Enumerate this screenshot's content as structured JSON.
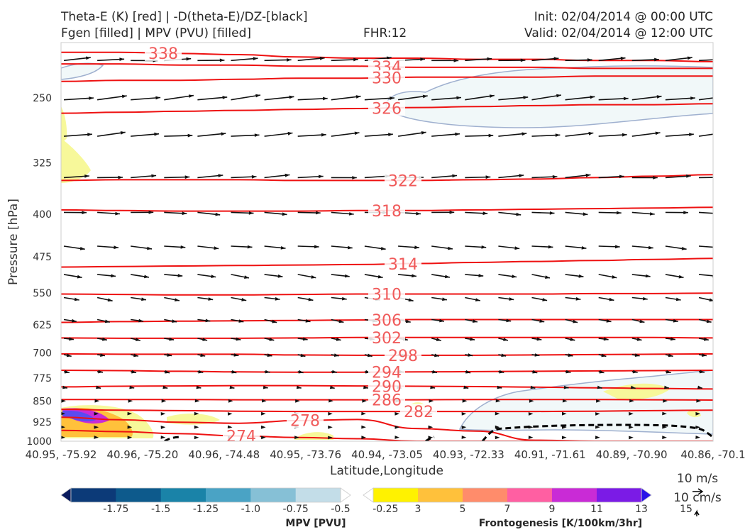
{
  "header": {
    "title_line1": "Theta-E (K) [red] | -D(theta-E)/DZ-[black]",
    "title_line2": "Fgen [filled] | MPV (PVU) [filled]",
    "fhr": "FHR:12",
    "init": "Init: 02/04/2014 @ 00:00 UTC",
    "valid": "Valid: 02/04/2014 @ 12:00 UTC"
  },
  "chart_data": {
    "type": "cross-section",
    "xlabel": "Latitude,Longitude",
    "ylabel": "Pressure [hPa]",
    "ylim": [
      1000,
      200
    ],
    "y_scale": "log",
    "x_ticks": [
      "40.95, -75.92",
      "40.96, -75.20",
      "40.96, -74.48",
      "40.95, -73.76",
      "40.94, -73.05",
      "40.93, -72.33",
      "40.91, -71.61",
      "40.89, -70.90",
      "40.86, -70.1"
    ],
    "y_ticks": [
      250,
      325,
      400,
      475,
      550,
      625,
      700,
      775,
      850,
      925,
      1000
    ],
    "theta_e_contours": [
      {
        "level": 338,
        "label": "338",
        "values": [
          208,
          208,
          209,
          210,
          212,
          213,
          213,
          214,
          214,
          215,
          215,
          216
        ]
      },
      {
        "level": 334,
        "label": "334",
        "values": [
          218,
          218,
          219,
          219,
          220,
          220,
          221,
          221,
          221,
          222,
          222,
          222
        ]
      },
      {
        "level": 330,
        "label": "330",
        "values": [
          234,
          233,
          233,
          232,
          231,
          231,
          230,
          230,
          230,
          229,
          229,
          229
        ]
      },
      {
        "level": 326,
        "label": "326",
        "values": [
          266,
          265,
          264,
          263,
          262,
          261,
          260,
          259,
          258,
          257,
          257,
          256
        ]
      },
      {
        "level": 322,
        "label": "322",
        "values": [
          349,
          348,
          348,
          348,
          349,
          349,
          349,
          348,
          347,
          345,
          343,
          341
        ]
      },
      {
        "level": 318,
        "label": "318",
        "values": [
          393,
          394,
          395,
          395,
          395,
          394,
          394,
          393,
          392,
          391,
          390,
          389
        ]
      },
      {
        "level": 314,
        "label": "314",
        "values": [
          495,
          494,
          493,
          492,
          491,
          490,
          488,
          486,
          484,
          482,
          480,
          478
        ]
      },
      {
        "level": 310,
        "label": "310",
        "values": [
          552,
          553,
          554,
          554,
          553,
          552,
          552,
          552,
          552,
          551,
          551,
          550
        ]
      },
      {
        "level": 306,
        "label": "306",
        "values": [
          619,
          617,
          616,
          615,
          614,
          613,
          612,
          612,
          612,
          612,
          612,
          612
        ]
      },
      {
        "level": 302,
        "label": "302",
        "values": [
          659,
          660,
          660,
          660,
          659,
          658,
          658,
          658,
          658,
          658,
          658,
          659
        ]
      },
      {
        "level": 298,
        "label": "298",
        "values": [
          703,
          704,
          704,
          704,
          706,
          707,
          707,
          707,
          706,
          705,
          704,
          703
        ]
      },
      {
        "level": 294,
        "label": "294",
        "values": [
          751,
          752,
          754,
          756,
          757,
          757,
          756,
          755,
          754,
          753,
          752,
          751
        ]
      },
      {
        "level": 290,
        "label": "290",
        "values": [
          803,
          801,
          800,
          799,
          799,
          800,
          801,
          802,
          804,
          806,
          808,
          810
        ]
      },
      {
        "level": 286,
        "label": "286",
        "values": [
          845,
          845,
          845,
          846,
          846,
          846,
          846,
          845,
          845,
          845,
          846,
          847
        ]
      },
      {
        "level": 282,
        "label": "282",
        "values": [
          879,
          882,
          884,
          886,
          887,
          887,
          887,
          887,
          887,
          886,
          884,
          882
        ]
      },
      {
        "level": 278,
        "label": "278",
        "values": [
          908,
          917,
          926,
          930,
          920,
          916,
          950,
          960,
          996,
          1000,
          1000,
          1000
        ]
      },
      {
        "level": 274,
        "label": "274",
        "values": [
          957,
          962,
          970,
          979,
          985,
          990,
          1000,
          1000,
          1000,
          1000,
          1000,
          1000
        ]
      }
    ],
    "mpv_colorbar": {
      "title": "MPV [PVU]",
      "ticks": [
        "-1.75",
        "-1.5",
        "-1.25",
        "-1.0",
        "-0.75",
        "-0.5",
        "-0.25"
      ],
      "colors": [
        "#0a1b5e",
        "#0c3a78",
        "#0d5a8c",
        "#1a83a8",
        "#4aa3c5",
        "#86c0d6",
        "#c3dde8",
        "#ffffff"
      ]
    },
    "fgen_colorbar": {
      "title": "Frontogenesis [K/100km/3hr]",
      "ticks": [
        "3",
        "5",
        "7",
        "9",
        "11",
        "13",
        "15"
      ],
      "colors": [
        "#ffffff",
        "#fff200",
        "#ffc13b",
        "#ff8c6b",
        "#ff5fa2",
        "#c92bd6",
        "#7b1be6",
        "#2a13e8"
      ]
    },
    "wind_key": {
      "horizontal": "10 m/s",
      "vertical": "10 cm/s"
    }
  }
}
